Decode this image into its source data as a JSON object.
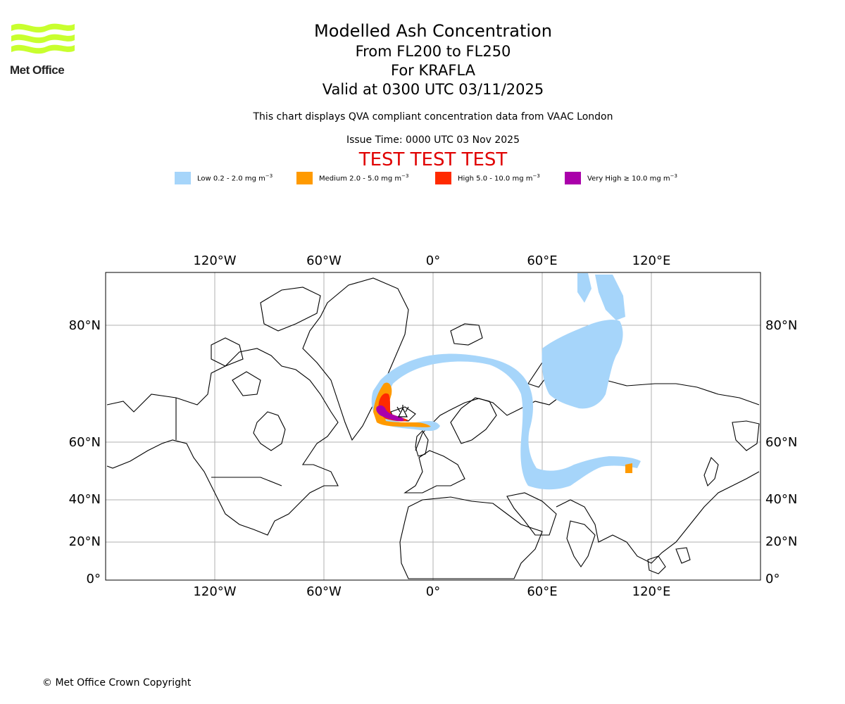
{
  "header": {
    "logo_text": "Met Office",
    "title": "Modelled Ash Concentration",
    "flight_levels": "From FL200 to FL250",
    "volcano": "For KRAFLA",
    "valid_time": "Valid at 0300 UTC 03/11/2025",
    "subtitle": "This chart displays QVA compliant concentration data from VAAC London",
    "issue_time": "Issue Time: 0000 UTC 03 Nov 2025",
    "test_banner": "TEST TEST TEST"
  },
  "legend": [
    {
      "label": "Low 0.2 - 2.0 mg m",
      "color": "#a6d5fa"
    },
    {
      "label": "Medium 2.0 - 5.0 mg m",
      "color": "#ff9a00"
    },
    {
      "label": "High 5.0 - 10.0 mg m",
      "color": "#ff2a00"
    },
    {
      "label": "Very High ≥ 10.0 mg m",
      "color": "#aa00aa"
    }
  ],
  "legend_unit_exponent": "−3",
  "map": {
    "lon_labels": [
      "120°W",
      "60°W",
      "0°",
      "60°E",
      "120°E"
    ],
    "lat_labels": [
      "80°N",
      "60°N",
      "40°N",
      "20°N",
      "0°"
    ],
    "volcano_marker": "volcano-icon"
  },
  "footer": {
    "copyright": "© Met Office Crown Copyright"
  },
  "colors": {
    "low": "#a6d5fa",
    "medium": "#ff9a00",
    "high": "#ff2a00",
    "very_high": "#aa00aa",
    "test_banner": "#e00000",
    "logo": "#c8ff2e"
  }
}
